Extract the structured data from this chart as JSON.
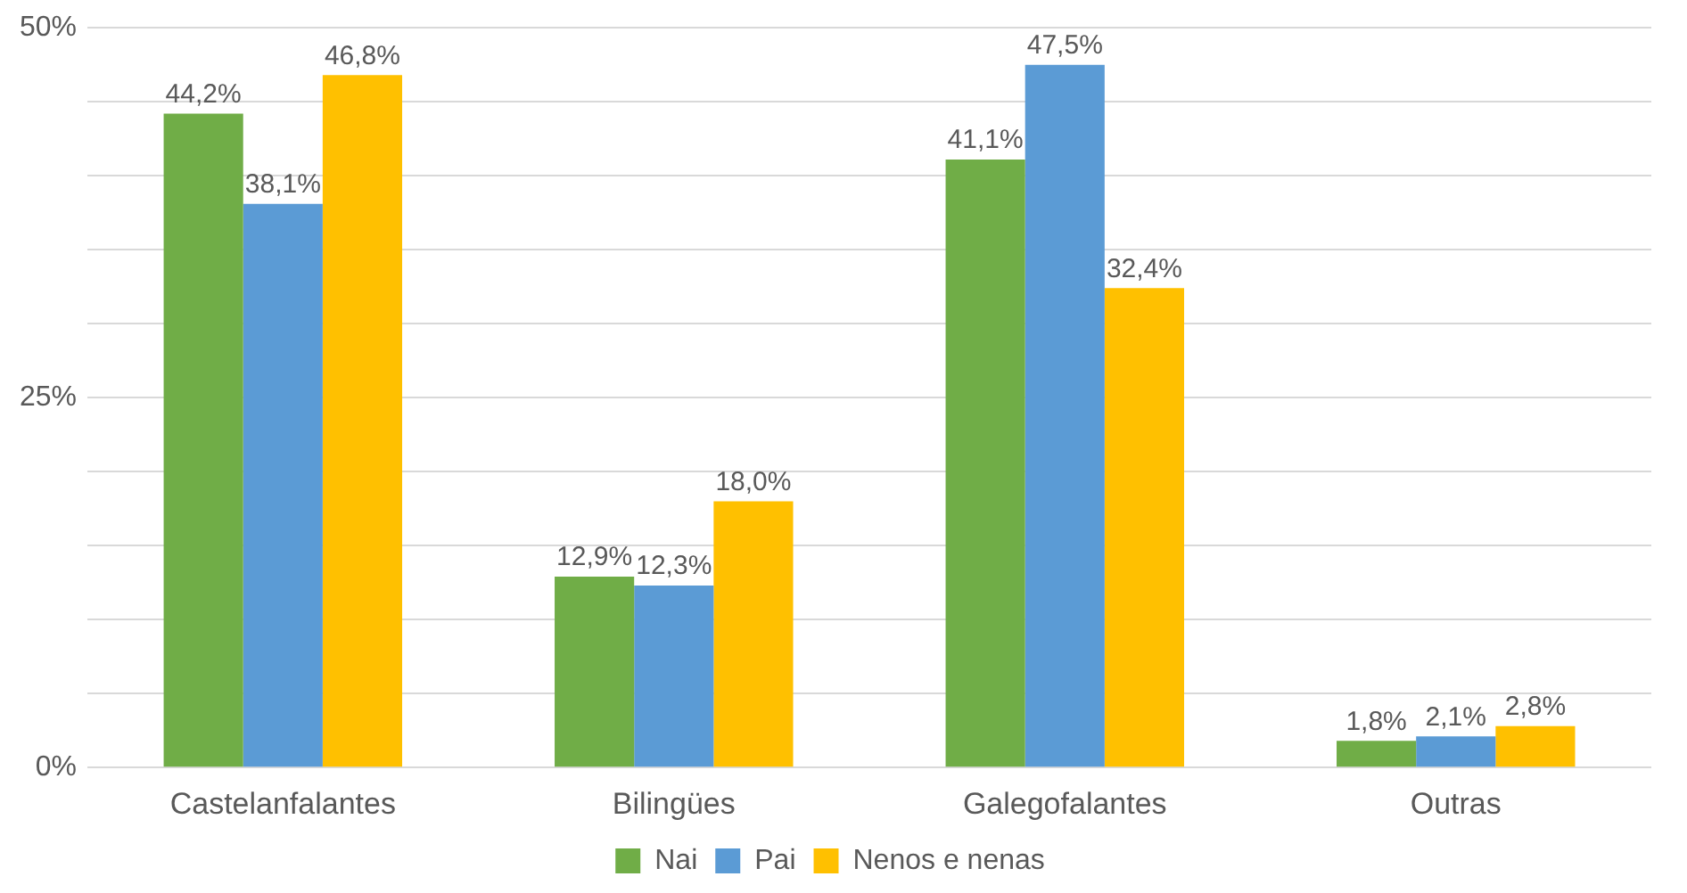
{
  "chart_data": {
    "type": "bar",
    "categories": [
      "Castelanfalantes",
      "Bilingües",
      "Galegofalantes",
      "Outras"
    ],
    "series": [
      {
        "name": "Nai",
        "color": "#70ad47",
        "values": [
          44.2,
          12.9,
          41.1,
          1.8
        ],
        "value_labels": [
          "44,2%",
          "12,9%",
          "41,1%",
          "1,8%"
        ]
      },
      {
        "name": "Pai",
        "color": "#5b9bd5",
        "values": [
          38.1,
          12.3,
          47.5,
          2.1
        ],
        "value_labels": [
          "38,1%",
          "12,3%",
          "47,5%",
          "2,1%"
        ]
      },
      {
        "name": "Nenos e nenas",
        "color": "#ffc000",
        "values": [
          46.8,
          18.0,
          32.4,
          2.8
        ],
        "value_labels": [
          "46,8%",
          "18,0%",
          "32,4%",
          "2,8%"
        ]
      }
    ],
    "ylim": [
      0,
      50
    ],
    "yticks": [
      {
        "value": 0,
        "label": "0%"
      },
      {
        "value": 5,
        "label": null
      },
      {
        "value": 10,
        "label": null
      },
      {
        "value": 15,
        "label": null
      },
      {
        "value": 20,
        "label": null
      },
      {
        "value": 25,
        "label": "25%"
      },
      {
        "value": 30,
        "label": null
      },
      {
        "value": 35,
        "label": null
      },
      {
        "value": 40,
        "label": null
      },
      {
        "value": 45,
        "label": null
      },
      {
        "value": 50,
        "label": "50%"
      }
    ],
    "grid": "y",
    "legend": "bottom"
  }
}
